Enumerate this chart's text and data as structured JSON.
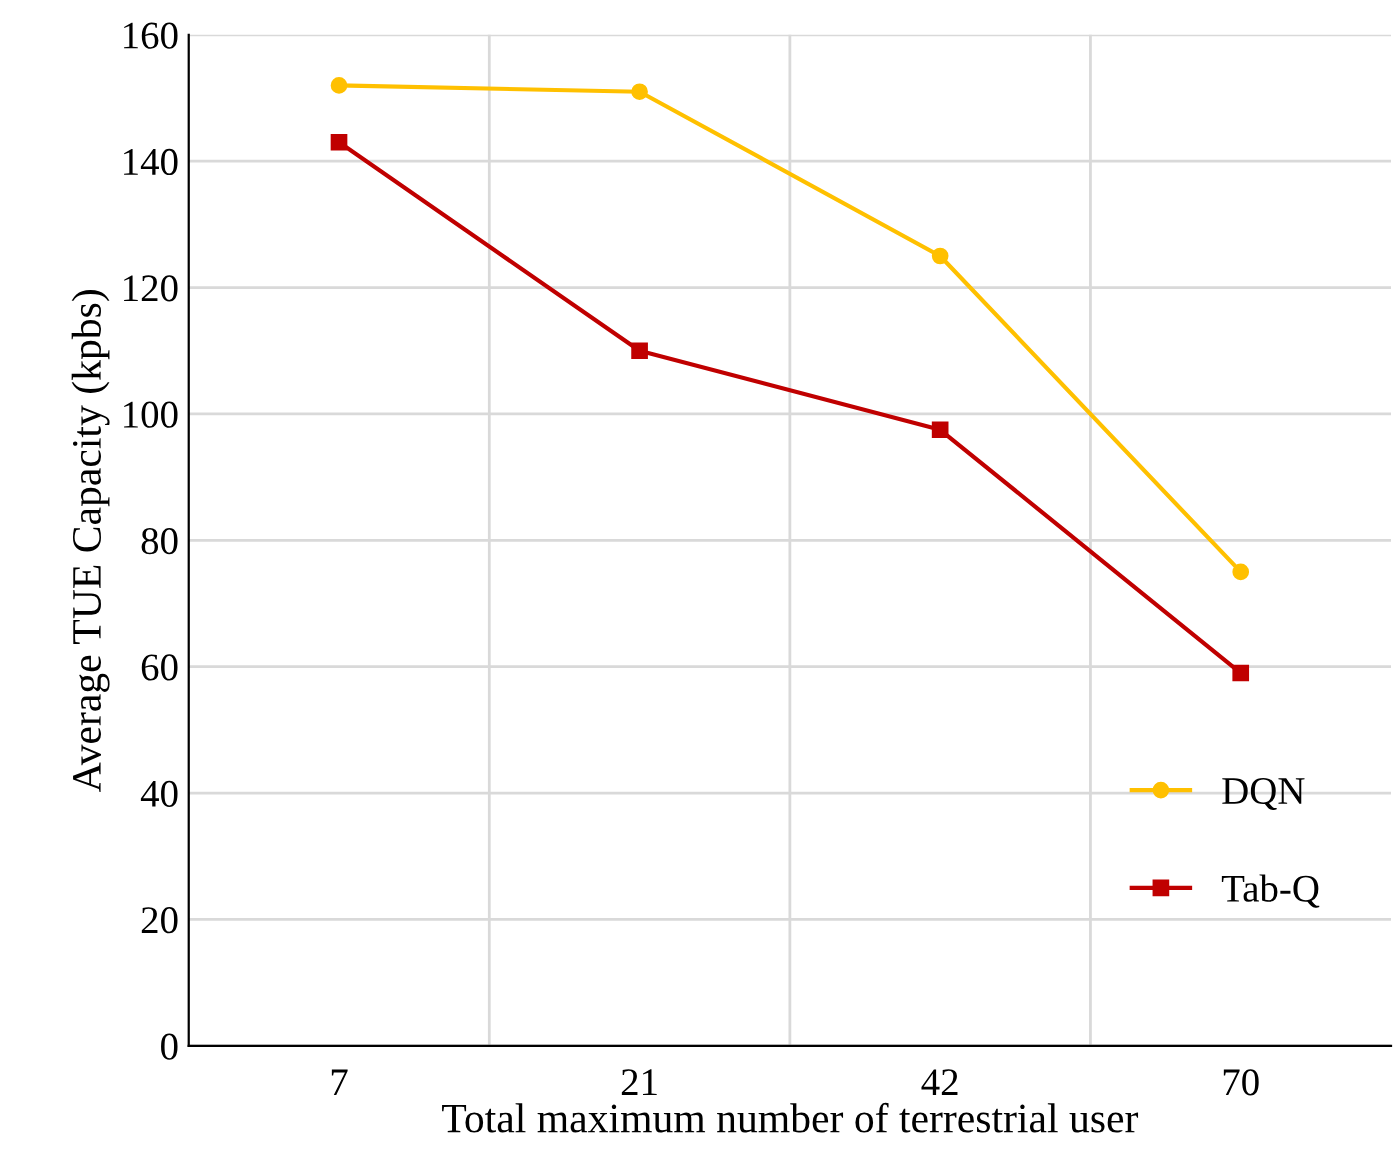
{
  "chart_data": {
    "type": "line",
    "xlabel": "Total maximum number of terrestrial user",
    "ylabel": "Average TUE Capacity (kpbs)",
    "categories": [
      "7",
      "21",
      "42",
      "70"
    ],
    "series": [
      {
        "name": "DQN",
        "color": "#ffc000",
        "marker": "circle",
        "values": [
          152,
          151,
          125,
          75
        ]
      },
      {
        "name": "Tab-Q",
        "color": "#c00000",
        "marker": "square",
        "values": [
          143,
          110,
          97.5,
          59
        ]
      }
    ],
    "ylim": [
      0,
      160
    ],
    "yticks": [
      0,
      20,
      40,
      60,
      80,
      100,
      120,
      140,
      160
    ],
    "grid": true,
    "legend": "bottom right"
  }
}
